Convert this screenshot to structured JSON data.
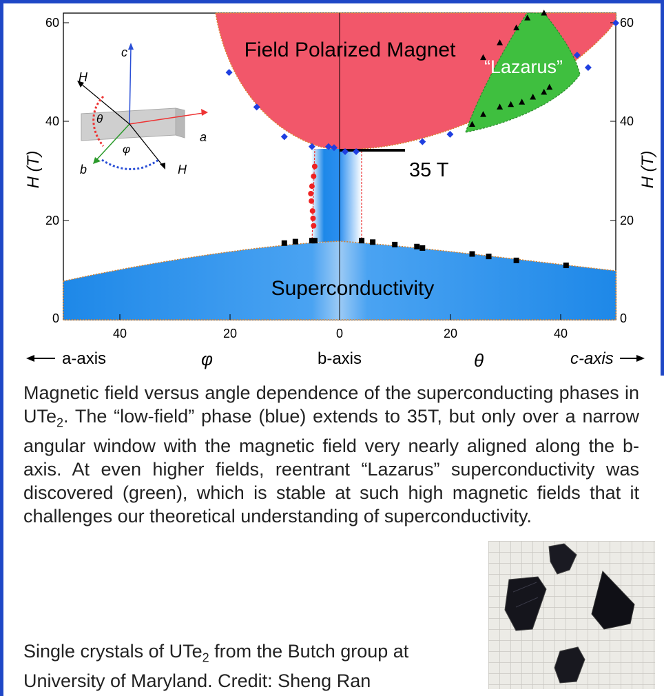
{
  "figure": {
    "region_labels": {
      "field_polarized": "Field Polarized Magnet",
      "lazarus": "“Lazarus”",
      "superconductivity": "Superconductivity",
      "field_35t": "35 T"
    },
    "y_axis_label_left": "H (T)",
    "y_axis_label_right": "H (T)",
    "inset_labels": {
      "c": "c",
      "a": "a",
      "b": "b",
      "H_upper": "H",
      "H_lower": "H",
      "theta": "θ",
      "phi": "φ"
    },
    "axis_direction_labels": {
      "a_axis": "a-axis",
      "phi": "φ",
      "b_axis": "b-axis",
      "theta": "θ",
      "c_axis": "c-axis"
    },
    "colors": {
      "field_polarized": "#f2576a",
      "lazarus": "#3fbf3f",
      "superconductivity": "#1e88e8",
      "frame": "#1f47c6"
    }
  },
  "chart_data": {
    "type": "scatter",
    "x_left_label": "φ",
    "x_right_label": "θ",
    "ylabel": "H (T)",
    "ylim": [
      0,
      60
    ],
    "x_left_range": [
      50,
      0
    ],
    "x_right_range": [
      0,
      50
    ],
    "y_ticks": [
      0,
      20,
      40,
      60
    ],
    "x_ticks_left": [
      40,
      20,
      0
    ],
    "x_ticks_right": [
      20,
      40
    ],
    "series": [
      {
        "marker": "diamond-blue",
        "points": [
          {
            "side": "phi",
            "x": 20,
            "y": 50
          },
          {
            "side": "phi",
            "x": 15,
            "y": 43
          },
          {
            "side": "phi",
            "x": 10,
            "y": 37
          },
          {
            "side": "phi",
            "x": 5,
            "y": 35
          },
          {
            "side": "phi",
            "x": 2,
            "y": 35
          },
          {
            "side": "phi",
            "x": 1,
            "y": 34.8
          },
          {
            "side": "theta",
            "x": 1,
            "y": 34
          },
          {
            "side": "theta",
            "x": 3,
            "y": 34
          },
          {
            "side": "theta",
            "x": 15,
            "y": 36
          },
          {
            "side": "theta",
            "x": 20,
            "y": 37.5
          },
          {
            "side": "theta",
            "x": 45,
            "y": 51
          },
          {
            "side": "theta",
            "x": 43,
            "y": 53.5
          },
          {
            "side": "theta",
            "x": 50,
            "y": 60
          }
        ]
      },
      {
        "marker": "circle-red",
        "points": [
          {
            "side": "phi",
            "x": 4.5,
            "y": 31
          },
          {
            "side": "phi",
            "x": 4.7,
            "y": 29
          },
          {
            "side": "phi",
            "x": 5.0,
            "y": 27
          },
          {
            "side": "phi",
            "x": 5.2,
            "y": 25.5
          },
          {
            "side": "phi",
            "x": 5.1,
            "y": 24
          },
          {
            "side": "phi",
            "x": 4.9,
            "y": 22
          },
          {
            "side": "phi",
            "x": 4.8,
            "y": 20.5
          },
          {
            "side": "phi",
            "x": 4.7,
            "y": 19
          }
        ]
      },
      {
        "marker": "square-black",
        "points": [
          {
            "side": "phi",
            "x": 10,
            "y": 15.5
          },
          {
            "side": "phi",
            "x": 8,
            "y": 15.8
          },
          {
            "side": "phi",
            "x": 5,
            "y": 16
          },
          {
            "side": "phi",
            "x": 4.5,
            "y": 16
          },
          {
            "side": "theta",
            "x": 4,
            "y": 16
          },
          {
            "side": "theta",
            "x": 6,
            "y": 15.7
          },
          {
            "side": "theta",
            "x": 10,
            "y": 15.2
          },
          {
            "side": "theta",
            "x": 14,
            "y": 14.8
          },
          {
            "side": "theta",
            "x": 15,
            "y": 14.5
          },
          {
            "side": "theta",
            "x": 24,
            "y": 13.3
          },
          {
            "side": "theta",
            "x": 27,
            "y": 12.8
          },
          {
            "side": "theta",
            "x": 32,
            "y": 12
          },
          {
            "side": "theta",
            "x": 41,
            "y": 11
          }
        ]
      },
      {
        "marker": "triangle-black",
        "points": [
          {
            "side": "theta",
            "x": 24,
            "y": 39.5
          },
          {
            "side": "theta",
            "x": 26,
            "y": 41.5
          },
          {
            "side": "theta",
            "x": 29,
            "y": 43
          },
          {
            "side": "theta",
            "x": 31,
            "y": 43.5
          },
          {
            "side": "theta",
            "x": 33,
            "y": 44
          },
          {
            "side": "theta",
            "x": 35,
            "y": 45
          },
          {
            "side": "theta",
            "x": 37,
            "y": 46
          },
          {
            "side": "theta",
            "x": 38,
            "y": 47
          },
          {
            "side": "theta",
            "x": 26,
            "y": 53
          },
          {
            "side": "theta",
            "x": 29,
            "y": 56
          },
          {
            "side": "theta",
            "x": 32,
            "y": 59
          },
          {
            "side": "theta",
            "x": 34,
            "y": 61
          },
          {
            "side": "theta",
            "x": 37,
            "y": 62
          }
        ]
      }
    ]
  },
  "caption_text": "Magnetic field versus angle dependence of the superconducting phases in UTe",
  "caption_sub": "2",
  "caption_rest": ".  The “low-field” phase (blue) extends to 35T, but only over a narrow angular window with the magnetic field very nearly aligned along the b-axis. At even higher fields, reentrant “Lazarus” superconductivity was discovered (green), which is stable at such high magnetic fields that it challenges our theoretical understanding of superconductivity.",
  "photo_caption": {
    "part1": "Single crystals of UTe",
    "sub": "2",
    "part2": " from the Butch group at University of Maryland. Credit: Sheng Ran"
  }
}
